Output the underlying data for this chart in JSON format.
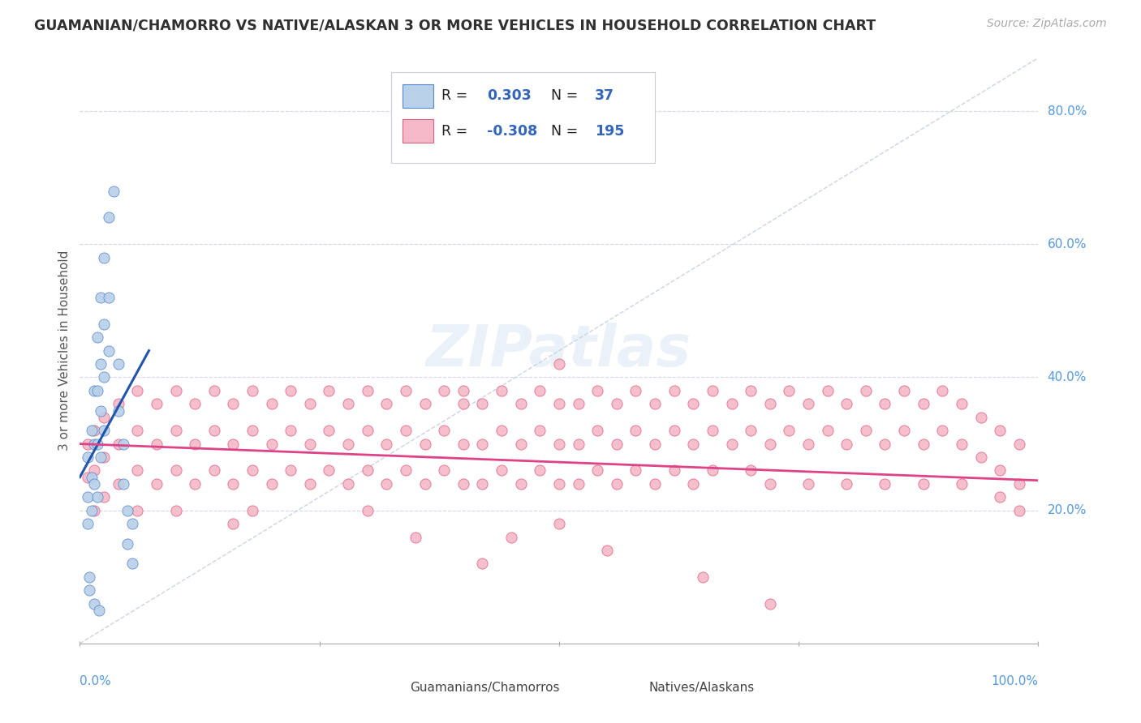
{
  "title": "GUAMANIAN/CHAMORRO VS NATIVE/ALASKAN 3 OR MORE VEHICLES IN HOUSEHOLD CORRELATION CHART",
  "source_text": "Source: ZipAtlas.com",
  "ylabel": "3 or more Vehicles in Household",
  "xlim": [
    0.0,
    1.0
  ],
  "ylim": [
    0.0,
    0.88
  ],
  "ytick_values": [
    0.2,
    0.4,
    0.6,
    0.8
  ],
  "ytick_labels": [
    "20.0%",
    "40.0%",
    "60.0%",
    "80.0%"
  ],
  "xtick_values": [
    0.0,
    0.25,
    0.5,
    0.75,
    1.0
  ],
  "xtick_labels_show": [
    "0.0%",
    "",
    "",
    "",
    "100.0%"
  ],
  "color_blue_fill": "#b8d0e8",
  "color_pink_fill": "#f5b8c8",
  "color_blue_edge": "#5588cc",
  "color_pink_edge": "#e06080",
  "color_blue_line": "#2255aa",
  "color_pink_line": "#dd4488",
  "color_diag": "#c0c8d8",
  "watermark_color": "#c8d8ee",
  "watermark_text": "ZIPatlas",
  "background_color": "#ffffff",
  "grid_color": "#d0d8e8",
  "title_color": "#303030",
  "axis_label_color": "#5599dd",
  "legend_label_color": "#3366bb",
  "blue_scatter": [
    [
      0.008,
      0.28
    ],
    [
      0.008,
      0.22
    ],
    [
      0.008,
      0.18
    ],
    [
      0.012,
      0.32
    ],
    [
      0.012,
      0.25
    ],
    [
      0.012,
      0.2
    ],
    [
      0.015,
      0.38
    ],
    [
      0.015,
      0.3
    ],
    [
      0.015,
      0.24
    ],
    [
      0.018,
      0.46
    ],
    [
      0.018,
      0.38
    ],
    [
      0.018,
      0.3
    ],
    [
      0.018,
      0.22
    ],
    [
      0.022,
      0.52
    ],
    [
      0.022,
      0.42
    ],
    [
      0.022,
      0.35
    ],
    [
      0.022,
      0.28
    ],
    [
      0.025,
      0.58
    ],
    [
      0.025,
      0.48
    ],
    [
      0.025,
      0.4
    ],
    [
      0.025,
      0.32
    ],
    [
      0.03,
      0.64
    ],
    [
      0.03,
      0.52
    ],
    [
      0.03,
      0.44
    ],
    [
      0.035,
      0.68
    ],
    [
      0.04,
      0.42
    ],
    [
      0.04,
      0.35
    ],
    [
      0.045,
      0.3
    ],
    [
      0.045,
      0.24
    ],
    [
      0.05,
      0.2
    ],
    [
      0.05,
      0.15
    ],
    [
      0.055,
      0.18
    ],
    [
      0.055,
      0.12
    ],
    [
      0.01,
      0.1
    ],
    [
      0.01,
      0.08
    ],
    [
      0.015,
      0.06
    ],
    [
      0.02,
      0.05
    ]
  ],
  "pink_scatter": [
    [
      0.008,
      0.3
    ],
    [
      0.008,
      0.25
    ],
    [
      0.015,
      0.32
    ],
    [
      0.015,
      0.26
    ],
    [
      0.015,
      0.2
    ],
    [
      0.025,
      0.34
    ],
    [
      0.025,
      0.28
    ],
    [
      0.025,
      0.22
    ],
    [
      0.04,
      0.36
    ],
    [
      0.04,
      0.3
    ],
    [
      0.04,
      0.24
    ],
    [
      0.06,
      0.38
    ],
    [
      0.06,
      0.32
    ],
    [
      0.06,
      0.26
    ],
    [
      0.06,
      0.2
    ],
    [
      0.08,
      0.36
    ],
    [
      0.08,
      0.3
    ],
    [
      0.08,
      0.24
    ],
    [
      0.1,
      0.38
    ],
    [
      0.1,
      0.32
    ],
    [
      0.1,
      0.26
    ],
    [
      0.1,
      0.2
    ],
    [
      0.12,
      0.36
    ],
    [
      0.12,
      0.3
    ],
    [
      0.12,
      0.24
    ],
    [
      0.14,
      0.38
    ],
    [
      0.14,
      0.32
    ],
    [
      0.14,
      0.26
    ],
    [
      0.16,
      0.36
    ],
    [
      0.16,
      0.3
    ],
    [
      0.16,
      0.24
    ],
    [
      0.16,
      0.18
    ],
    [
      0.18,
      0.38
    ],
    [
      0.18,
      0.32
    ],
    [
      0.18,
      0.26
    ],
    [
      0.18,
      0.2
    ],
    [
      0.2,
      0.36
    ],
    [
      0.2,
      0.3
    ],
    [
      0.2,
      0.24
    ],
    [
      0.22,
      0.38
    ],
    [
      0.22,
      0.32
    ],
    [
      0.22,
      0.26
    ],
    [
      0.24,
      0.36
    ],
    [
      0.24,
      0.3
    ],
    [
      0.24,
      0.24
    ],
    [
      0.26,
      0.38
    ],
    [
      0.26,
      0.32
    ],
    [
      0.26,
      0.26
    ],
    [
      0.28,
      0.36
    ],
    [
      0.28,
      0.3
    ],
    [
      0.28,
      0.24
    ],
    [
      0.3,
      0.38
    ],
    [
      0.3,
      0.32
    ],
    [
      0.3,
      0.26
    ],
    [
      0.3,
      0.2
    ],
    [
      0.32,
      0.36
    ],
    [
      0.32,
      0.3
    ],
    [
      0.32,
      0.24
    ],
    [
      0.34,
      0.38
    ],
    [
      0.34,
      0.32
    ],
    [
      0.34,
      0.26
    ],
    [
      0.36,
      0.36
    ],
    [
      0.36,
      0.3
    ],
    [
      0.36,
      0.24
    ],
    [
      0.38,
      0.38
    ],
    [
      0.38,
      0.32
    ],
    [
      0.38,
      0.26
    ],
    [
      0.4,
      0.36
    ],
    [
      0.4,
      0.3
    ],
    [
      0.4,
      0.24
    ],
    [
      0.4,
      0.38
    ],
    [
      0.42,
      0.36
    ],
    [
      0.42,
      0.3
    ],
    [
      0.42,
      0.24
    ],
    [
      0.44,
      0.38
    ],
    [
      0.44,
      0.32
    ],
    [
      0.44,
      0.26
    ],
    [
      0.46,
      0.36
    ],
    [
      0.46,
      0.3
    ],
    [
      0.46,
      0.24
    ],
    [
      0.48,
      0.38
    ],
    [
      0.48,
      0.32
    ],
    [
      0.48,
      0.26
    ],
    [
      0.5,
      0.36
    ],
    [
      0.5,
      0.3
    ],
    [
      0.5,
      0.24
    ],
    [
      0.5,
      0.42
    ],
    [
      0.52,
      0.36
    ],
    [
      0.52,
      0.3
    ],
    [
      0.52,
      0.24
    ],
    [
      0.54,
      0.38
    ],
    [
      0.54,
      0.32
    ],
    [
      0.54,
      0.26
    ],
    [
      0.56,
      0.36
    ],
    [
      0.56,
      0.3
    ],
    [
      0.56,
      0.24
    ],
    [
      0.58,
      0.38
    ],
    [
      0.58,
      0.32
    ],
    [
      0.58,
      0.26
    ],
    [
      0.6,
      0.36
    ],
    [
      0.6,
      0.3
    ],
    [
      0.6,
      0.24
    ],
    [
      0.62,
      0.38
    ],
    [
      0.62,
      0.32
    ],
    [
      0.62,
      0.26
    ],
    [
      0.64,
      0.36
    ],
    [
      0.64,
      0.3
    ],
    [
      0.64,
      0.24
    ],
    [
      0.66,
      0.38
    ],
    [
      0.66,
      0.32
    ],
    [
      0.66,
      0.26
    ],
    [
      0.68,
      0.36
    ],
    [
      0.68,
      0.3
    ],
    [
      0.7,
      0.38
    ],
    [
      0.7,
      0.32
    ],
    [
      0.7,
      0.26
    ],
    [
      0.72,
      0.36
    ],
    [
      0.72,
      0.3
    ],
    [
      0.72,
      0.24
    ],
    [
      0.74,
      0.38
    ],
    [
      0.74,
      0.32
    ],
    [
      0.76,
      0.36
    ],
    [
      0.76,
      0.3
    ],
    [
      0.76,
      0.24
    ],
    [
      0.78,
      0.38
    ],
    [
      0.78,
      0.32
    ],
    [
      0.8,
      0.36
    ],
    [
      0.8,
      0.3
    ],
    [
      0.8,
      0.24
    ],
    [
      0.82,
      0.38
    ],
    [
      0.82,
      0.32
    ],
    [
      0.84,
      0.36
    ],
    [
      0.84,
      0.3
    ],
    [
      0.84,
      0.24
    ],
    [
      0.86,
      0.38
    ],
    [
      0.86,
      0.32
    ],
    [
      0.88,
      0.36
    ],
    [
      0.88,
      0.3
    ],
    [
      0.88,
      0.24
    ],
    [
      0.9,
      0.38
    ],
    [
      0.9,
      0.32
    ],
    [
      0.92,
      0.36
    ],
    [
      0.92,
      0.3
    ],
    [
      0.92,
      0.24
    ],
    [
      0.94,
      0.34
    ],
    [
      0.94,
      0.28
    ],
    [
      0.96,
      0.32
    ],
    [
      0.96,
      0.26
    ],
    [
      0.96,
      0.22
    ],
    [
      0.98,
      0.3
    ],
    [
      0.98,
      0.24
    ],
    [
      0.98,
      0.2
    ],
    [
      0.55,
      0.14
    ],
    [
      0.65,
      0.1
    ],
    [
      0.72,
      0.06
    ],
    [
      0.45,
      0.16
    ],
    [
      0.35,
      0.16
    ],
    [
      0.5,
      0.18
    ],
    [
      0.42,
      0.12
    ]
  ],
  "blue_line_x": [
    0.0,
    0.072
  ],
  "blue_line_y": [
    0.25,
    0.44
  ],
  "pink_line_x": [
    0.0,
    1.0
  ],
  "pink_line_y": [
    0.3,
    0.245
  ],
  "diag_line_x": [
    0.0,
    1.0
  ],
  "diag_line_y": [
    0.0,
    0.88
  ]
}
